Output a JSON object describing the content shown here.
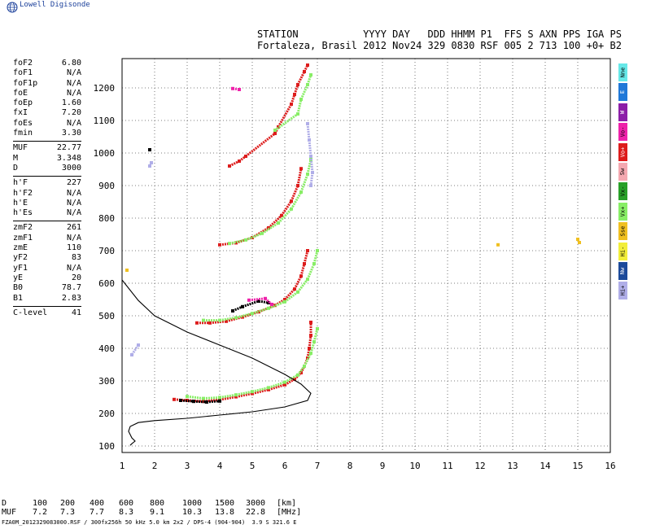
{
  "header": {
    "logo_text": "Lowell Digisonde",
    "station_label": "STATION",
    "station_name": "Fortaleza, Brasil",
    "col_labels": "YYYY DAY   DDD HHMM P1  FFS S AXN PPS IGA PS",
    "col_values": "2012 Nov24 329 0830 RSF 005 2 713 100 +0+ B2"
  },
  "params": [
    {
      "k": "foF2",
      "v": "6.80"
    },
    {
      "k": "foF1",
      "v": "N/A"
    },
    {
      "k": "foF1p",
      "v": "N/A"
    },
    {
      "k": "foE",
      "v": "N/A"
    },
    {
      "k": "foEp",
      "v": "1.60"
    },
    {
      "k": "fxI",
      "v": "7.20"
    },
    {
      "k": "foEs",
      "v": "N/A"
    },
    {
      "k": "fmin",
      "v": "3.30"
    },
    {
      "sep": true
    },
    {
      "k": "MUF",
      "v": "22.77"
    },
    {
      "k": "M",
      "v": "3.348"
    },
    {
      "k": "D",
      "v": "3000"
    },
    {
      "sep": true
    },
    {
      "k": "h'F",
      "v": "227"
    },
    {
      "k": "h'F2",
      "v": "N/A"
    },
    {
      "k": "h'E",
      "v": "N/A"
    },
    {
      "k": "h'Es",
      "v": "N/A"
    },
    {
      "sep": true
    },
    {
      "k": "zmF2",
      "v": "261"
    },
    {
      "k": "zmF1",
      "v": "N/A"
    },
    {
      "k": "zmE",
      "v": "110"
    },
    {
      "k": "yF2",
      "v": "83"
    },
    {
      "k": "yF1",
      "v": "N/A"
    },
    {
      "k": "yE",
      "v": "20"
    },
    {
      "k": "B0",
      "v": "78.7"
    },
    {
      "k": "B1",
      "v": "2.83"
    },
    {
      "sep": true
    },
    {
      "k": "C-level",
      "v": "41"
    }
  ],
  "legend": [
    {
      "label": "Nne",
      "color": "#66e8e8"
    },
    {
      "label": "E",
      "color": "#1f78d8"
    },
    {
      "label": "W",
      "color": "#8c1ea8"
    },
    {
      "label": "Vo-",
      "color": "#ee22aa"
    },
    {
      "label": "Vo+",
      "color": "#dd1c1c"
    },
    {
      "label": "Sw",
      "color": "#f4a8b0"
    },
    {
      "label": "Vx-",
      "color": "#28a028"
    },
    {
      "label": "Vx+",
      "color": "#88ee66"
    },
    {
      "label": "Sse",
      "color": "#f0c020"
    },
    {
      "label": "Hi-",
      "color": "#f2ee3a"
    },
    {
      "label": "Nw",
      "color": "#1c4a9a"
    },
    {
      "label": "Hi+",
      "color": "#b0aee8"
    }
  ],
  "muf_table": {
    "d_label": "D",
    "d_values": [
      "100",
      "200",
      "400",
      "600",
      "800",
      "1000",
      "1500",
      "3000"
    ],
    "d_unit": "[km]",
    "muf_label": "MUF",
    "muf_values": [
      "7.2",
      "7.3",
      "7.7",
      "8.3",
      "9.1",
      "10.3",
      "13.8",
      "22.8"
    ],
    "muf_unit": "[MHz]"
  },
  "footer": "FZA0M_2012329083000.RSF / 300fx256h 50 kHz 5.0 km 2x2 / DPS-4 (904-904)  3.9 S 321.6 E",
  "chart_data": {
    "type": "scatter",
    "xlim": [
      1,
      16
    ],
    "ylim": [
      80,
      1290
    ],
    "x_ticks": [
      1,
      2,
      3,
      4,
      5,
      6,
      7,
      8,
      9,
      10,
      11,
      12,
      13,
      14,
      15,
      16
    ],
    "y_ticks": [
      100,
      200,
      300,
      400,
      500,
      600,
      700,
      800,
      900,
      1000,
      1100,
      1200
    ],
    "grid": true,
    "series": [
      {
        "color": "#dd1c1c",
        "points": [
          [
            2.6,
            243
          ],
          [
            3.0,
            240
          ],
          [
            3.5,
            237
          ],
          [
            4.0,
            242
          ],
          [
            4.5,
            251
          ],
          [
            5.0,
            261
          ],
          [
            5.5,
            273
          ],
          [
            6.0,
            288
          ],
          [
            6.3,
            305
          ],
          [
            6.5,
            325
          ],
          [
            6.6,
            345
          ],
          [
            6.7,
            370
          ],
          [
            6.75,
            400
          ],
          [
            6.8,
            440
          ],
          [
            6.8,
            480
          ]
        ]
      },
      {
        "color": "#88ee66",
        "points": [
          [
            3.0,
            252
          ],
          [
            3.5,
            246
          ],
          [
            4.0,
            249
          ],
          [
            4.5,
            257
          ],
          [
            5.0,
            267
          ],
          [
            5.5,
            279
          ],
          [
            6.0,
            296
          ],
          [
            6.4,
            318
          ],
          [
            6.6,
            345
          ],
          [
            6.8,
            385
          ],
          [
            6.9,
            420
          ],
          [
            7.0,
            460
          ]
        ]
      },
      {
        "color": "#dd1c1c",
        "points": [
          [
            3.3,
            478
          ],
          [
            3.7,
            478
          ],
          [
            4.2,
            483
          ],
          [
            4.7,
            496
          ],
          [
            5.2,
            512
          ],
          [
            5.7,
            532
          ],
          [
            6.0,
            550
          ],
          [
            6.3,
            582
          ],
          [
            6.5,
            622
          ],
          [
            6.6,
            660
          ],
          [
            6.7,
            700
          ]
        ]
      },
      {
        "color": "#88ee66",
        "points": [
          [
            3.5,
            486
          ],
          [
            4.0,
            486
          ],
          [
            4.5,
            494
          ],
          [
            5.0,
            507
          ],
          [
            5.5,
            523
          ],
          [
            6.0,
            543
          ],
          [
            6.4,
            573
          ],
          [
            6.7,
            612
          ],
          [
            6.9,
            660
          ],
          [
            7.0,
            700
          ]
        ]
      },
      {
        "color": "#dd1c1c",
        "points": [
          [
            4.0,
            718
          ],
          [
            4.5,
            724
          ],
          [
            5.0,
            740
          ],
          [
            5.5,
            770
          ],
          [
            5.9,
            808
          ],
          [
            6.2,
            852
          ],
          [
            6.4,
            900
          ],
          [
            6.5,
            952
          ]
        ]
      },
      {
        "color": "#88ee66",
        "points": [
          [
            4.3,
            722
          ],
          [
            4.8,
            733
          ],
          [
            5.3,
            753
          ],
          [
            5.8,
            785
          ],
          [
            6.2,
            828
          ],
          [
            6.5,
            880
          ],
          [
            6.7,
            935
          ],
          [
            6.8,
            980
          ]
        ]
      },
      {
        "color": "#dd1c1c",
        "points": [
          [
            4.3,
            960
          ],
          [
            4.6,
            975
          ],
          [
            4.8,
            990
          ],
          [
            5.7,
            1060
          ],
          [
            5.8,
            1080
          ],
          [
            6.2,
            1150
          ],
          [
            6.3,
            1180
          ],
          [
            6.4,
            1210
          ],
          [
            6.6,
            1250
          ],
          [
            6.7,
            1270
          ]
        ]
      },
      {
        "color": "#88ee66",
        "points": [
          [
            5.7,
            1070
          ],
          [
            6.4,
            1120
          ],
          [
            6.5,
            1165
          ],
          [
            6.7,
            1210
          ],
          [
            6.8,
            1240
          ]
        ]
      },
      {
        "color": "#b0aee8",
        "points": [
          [
            6.7,
            1090
          ],
          [
            6.75,
            1040
          ],
          [
            6.8,
            990
          ],
          [
            6.85,
            940
          ],
          [
            6.8,
            900
          ],
          [
            1.85,
            960
          ],
          [
            1.9,
            970
          ],
          [
            1.5,
            410
          ],
          [
            1.3,
            380
          ]
        ]
      },
      {
        "color": "#000000",
        "points": [
          [
            2.8,
            240
          ],
          [
            3.2,
            237
          ],
          [
            3.6,
            235
          ],
          [
            4.0,
            238
          ],
          [
            4.4,
            515
          ],
          [
            4.7,
            528
          ],
          [
            5.2,
            545
          ],
          [
            5.5,
            540
          ],
          [
            1.85,
            1010
          ]
        ]
      },
      {
        "color": "#f0c020",
        "points": [
          [
            15.0,
            735
          ],
          [
            15.05,
            725
          ],
          [
            12.55,
            718
          ],
          [
            1.15,
            640
          ]
        ]
      },
      {
        "color": "#ee22aa",
        "points": [
          [
            4.9,
            548
          ],
          [
            5.4,
            553
          ],
          [
            5.6,
            535
          ],
          [
            4.4,
            1198
          ],
          [
            4.6,
            1195
          ]
        ]
      }
    ],
    "profile": {
      "color": "#000000",
      "points": [
        [
          1.0,
          610
        ],
        [
          1.5,
          547
        ],
        [
          2.0,
          500
        ],
        [
          3.0,
          450
        ],
        [
          4.0,
          410
        ],
        [
          5.0,
          370
        ],
        [
          6.0,
          320
        ],
        [
          6.5,
          290
        ],
        [
          6.8,
          262
        ],
        [
          6.7,
          240
        ],
        [
          6.0,
          220
        ],
        [
          5.0,
          205
        ],
        [
          4.0,
          195
        ],
        [
          3.0,
          185
        ],
        [
          2.0,
          178
        ],
        [
          1.5,
          172
        ],
        [
          1.25,
          160
        ],
        [
          1.2,
          145
        ],
        [
          1.3,
          125
        ],
        [
          1.4,
          115
        ],
        [
          1.3,
          107
        ],
        [
          1.25,
          102
        ]
      ]
    }
  }
}
